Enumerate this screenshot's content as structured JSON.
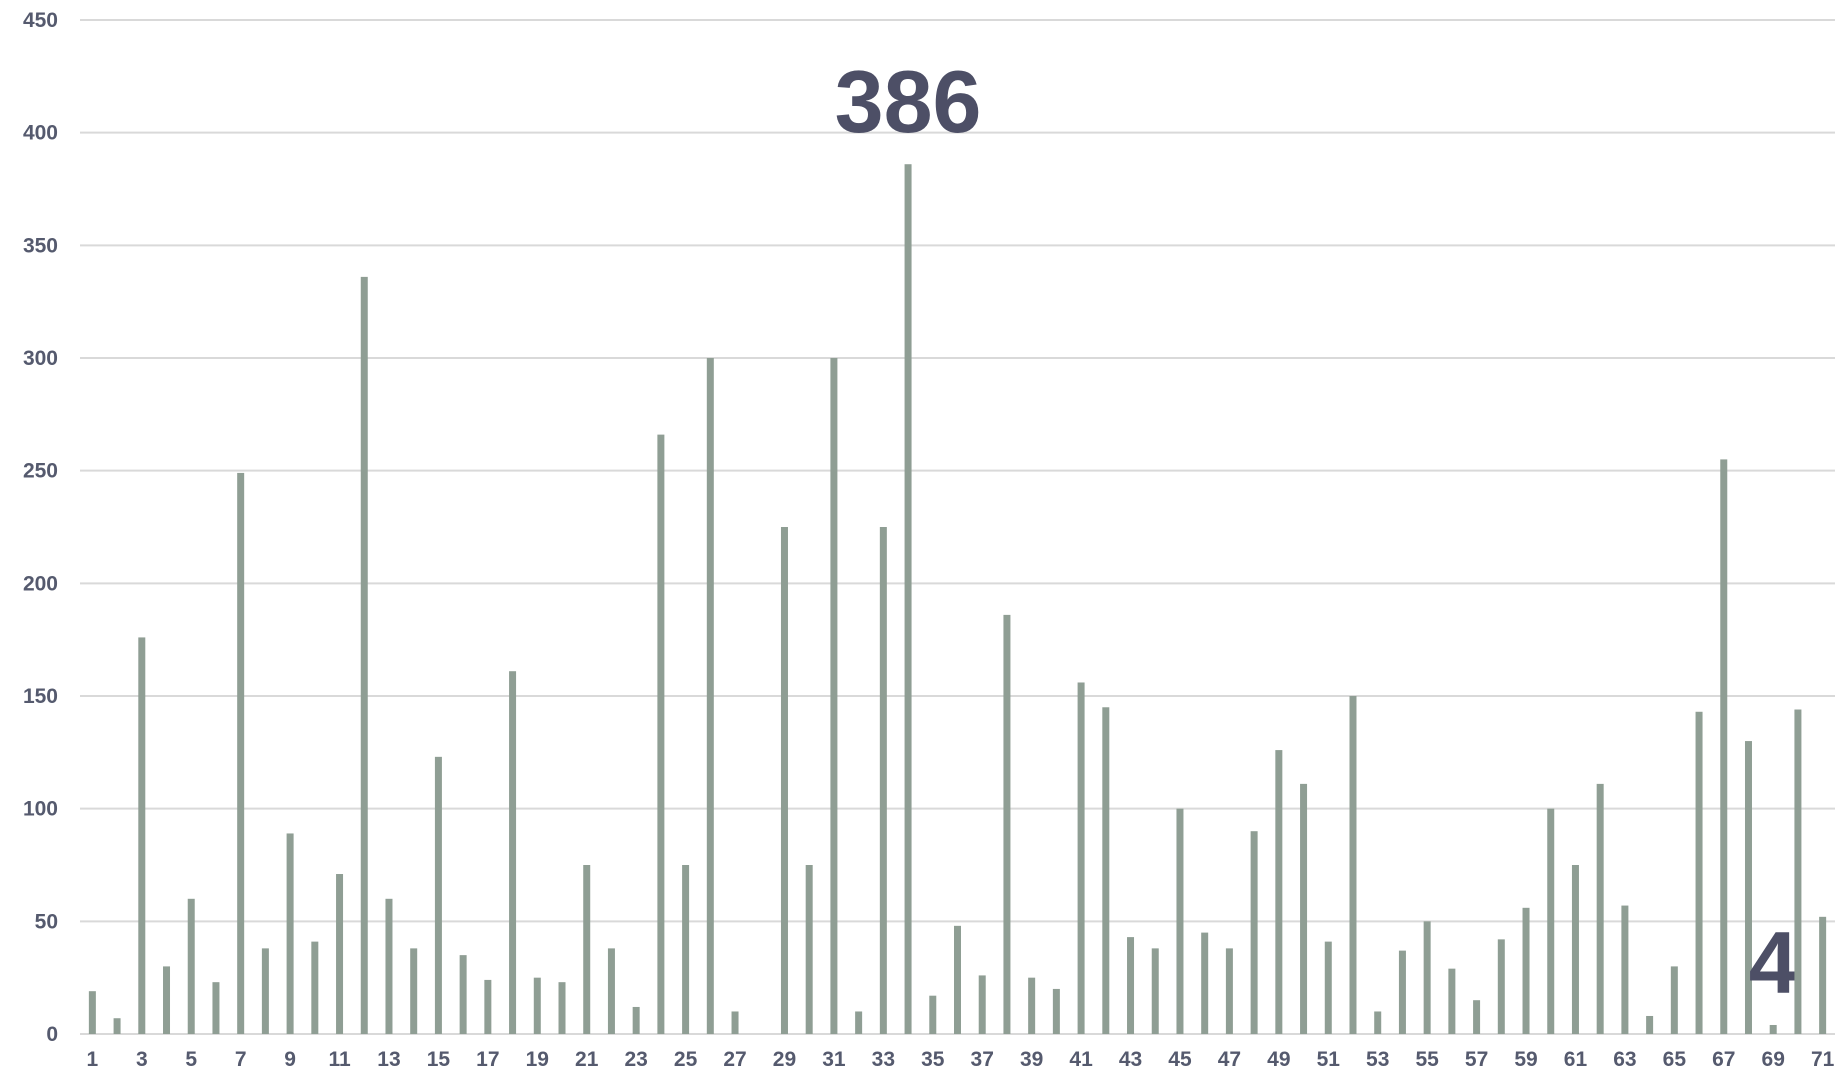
{
  "chart_data": {
    "type": "bar",
    "categories": [
      "1",
      null,
      "3",
      null,
      "5",
      null,
      "7",
      null,
      "9",
      null,
      "11",
      null,
      "13",
      null,
      "15",
      null,
      "17",
      null,
      "19",
      null,
      "21",
      null,
      "23",
      null,
      "25",
      null,
      "27",
      null,
      "29",
      null,
      "31",
      null,
      "33",
      null,
      "35",
      null,
      "37",
      null,
      "39",
      null,
      "41",
      null,
      "43",
      null,
      "45",
      null,
      "47",
      null,
      "49",
      null,
      "51",
      null,
      "53",
      null,
      "55",
      null,
      "57",
      null,
      "59",
      null,
      "61",
      null,
      "63",
      null,
      "65",
      null,
      "67",
      null,
      "69",
      null,
      "71"
    ],
    "values": [
      19,
      7,
      176,
      30,
      60,
      23,
      249,
      38,
      89,
      41,
      71,
      336,
      60,
      38,
      123,
      35,
      24,
      161,
      25,
      23,
      75,
      38,
      12,
      266,
      75,
      300,
      10,
      0,
      225,
      75,
      300,
      10,
      225,
      386,
      17,
      48,
      26,
      186,
      25,
      20,
      156,
      145,
      43,
      38,
      100,
      45,
      38,
      90,
      126,
      111,
      41,
      150,
      10,
      37,
      50,
      29,
      15,
      42,
      56,
      100,
      75,
      111,
      57,
      8,
      30,
      143,
      255,
      130,
      4,
      144,
      52
    ],
    "value_labels": [
      null,
      null,
      null,
      null,
      null,
      null,
      null,
      null,
      null,
      null,
      null,
      null,
      null,
      null,
      null,
      null,
      null,
      null,
      null,
      null,
      null,
      null,
      null,
      null,
      null,
      null,
      null,
      null,
      null,
      null,
      null,
      null,
      null,
      "386",
      null,
      null,
      null,
      null,
      null,
      null,
      null,
      null,
      null,
      null,
      null,
      null,
      null,
      null,
      null,
      null,
      null,
      null,
      null,
      null,
      null,
      null,
      null,
      null,
      null,
      null,
      null,
      null,
      null,
      null,
      null,
      null,
      null,
      null,
      "4",
      null,
      null
    ],
    "color": "#8f9e94",
    "ylim": [
      0,
      450
    ],
    "yticks": [
      0,
      50,
      100,
      150,
      200,
      250,
      300,
      350,
      400,
      450
    ],
    "grid": true
  }
}
